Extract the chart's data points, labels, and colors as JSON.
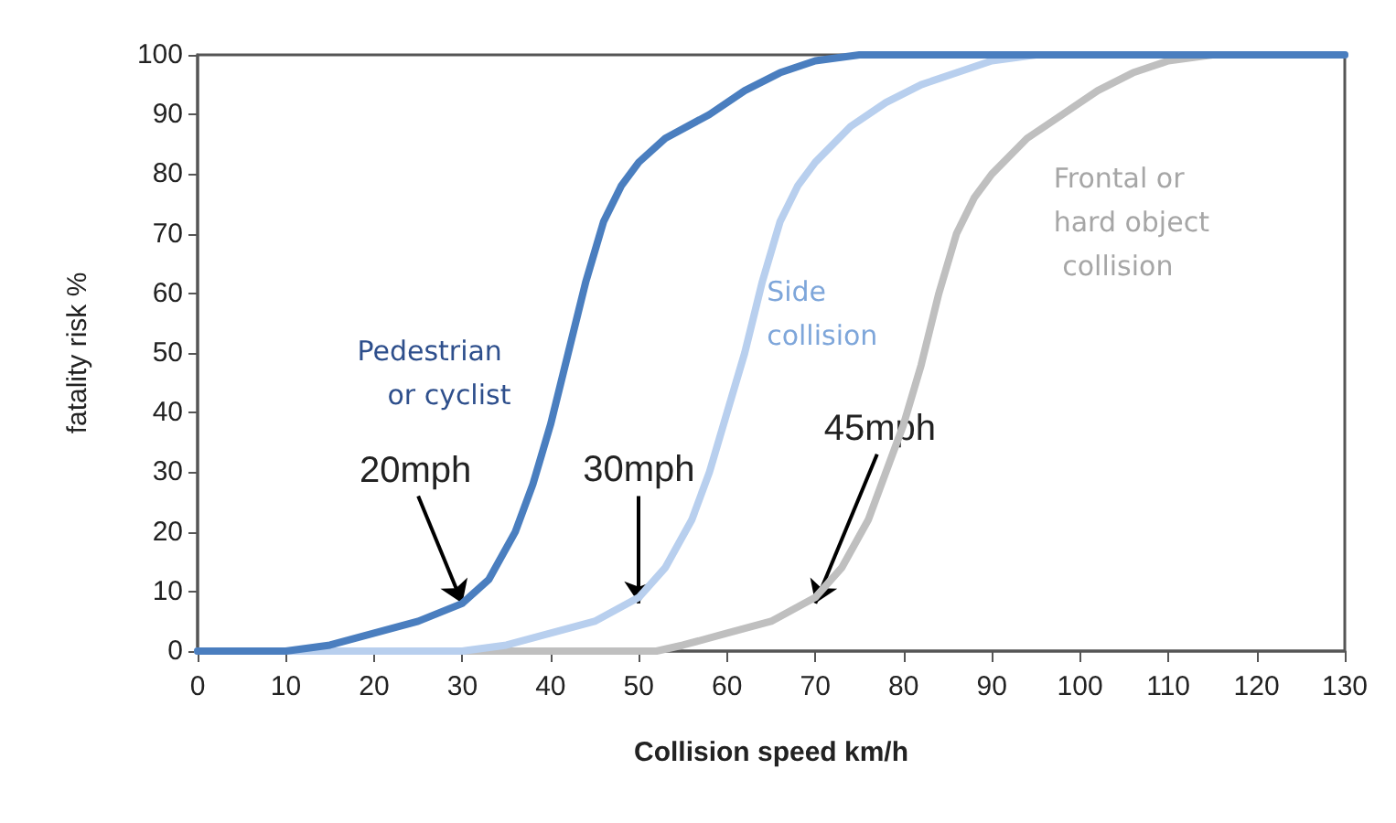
{
  "chart_data": {
    "type": "line",
    "xlabel": "Collision speed km/h",
    "ylabel": "fatality risk %",
    "xlim": [
      0,
      130
    ],
    "xticks": [
      0,
      10,
      20,
      30,
      40,
      50,
      60,
      70,
      80,
      90,
      100,
      110,
      120,
      130
    ],
    "ylim": [
      0,
      100
    ],
    "yticks": [
      0,
      10,
      20,
      30,
      40,
      50,
      60,
      70,
      80,
      90,
      100
    ],
    "grid": false,
    "legend": false,
    "marker": "none",
    "line_style": "solid",
    "series": [
      {
        "name": "Pedestrian or cyclist",
        "color": "#4a7ebf",
        "x": [
          0,
          10,
          15,
          20,
          25,
          30,
          33,
          36,
          38,
          40,
          42,
          44,
          46,
          48,
          50,
          53,
          58,
          62,
          66,
          70,
          75,
          130
        ],
        "values": [
          0,
          0,
          1,
          3,
          5,
          8,
          12,
          20,
          28,
          38,
          50,
          62,
          72,
          78,
          82,
          86,
          90,
          94,
          97,
          99,
          100,
          100
        ]
      },
      {
        "name": "Side collision",
        "color": "#b8cfee",
        "x": [
          0,
          30,
          35,
          40,
          45,
          50,
          53,
          56,
          58,
          60,
          62,
          64,
          66,
          68,
          70,
          74,
          78,
          82,
          86,
          90,
          95,
          130
        ],
        "values": [
          0,
          0,
          1,
          3,
          5,
          9,
          14,
          22,
          30,
          40,
          50,
          62,
          72,
          78,
          82,
          88,
          92,
          95,
          97,
          99,
          100,
          100
        ]
      },
      {
        "name": "Frontal or hard object collision",
        "color": "#bfbfbf",
        "x": [
          0,
          52,
          55,
          60,
          65,
          70,
          73,
          76,
          78,
          80,
          82,
          84,
          86,
          88,
          90,
          94,
          98,
          102,
          106,
          110,
          115,
          130
        ],
        "values": [
          0,
          0,
          1,
          3,
          5,
          9,
          14,
          22,
          30,
          38,
          48,
          60,
          70,
          76,
          80,
          86,
          90,
          94,
          97,
          99,
          100,
          100
        ]
      }
    ],
    "annotations": [
      {
        "text": "20mph",
        "x": 30,
        "y": 8
      },
      {
        "text": "30mph",
        "x": 50,
        "y": 8
      },
      {
        "text": "45mph",
        "x": 70,
        "y": 8
      }
    ]
  }
}
